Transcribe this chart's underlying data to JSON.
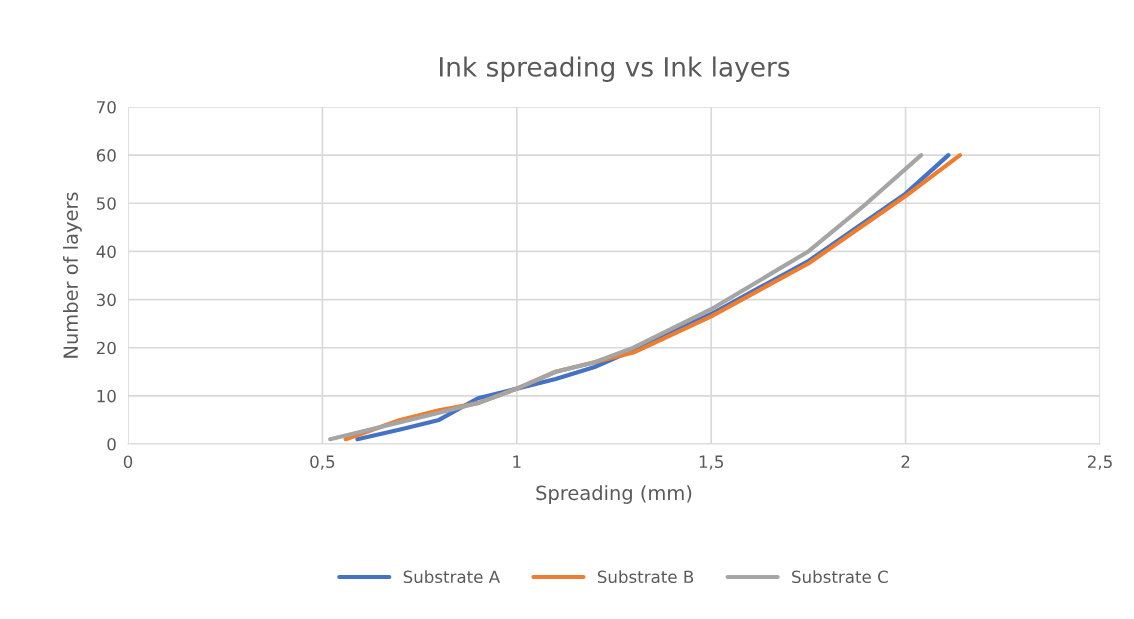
{
  "chart_data": {
    "type": "line",
    "title": "Ink spreading vs Ink layers",
    "xlabel": "Spreading (mm)",
    "ylabel": "Number of layers",
    "xlim": [
      0,
      2.5
    ],
    "ylim": [
      0,
      70
    ],
    "xticks": [
      0,
      {
        "value": 0.5,
        "label": "0,5"
      },
      1,
      {
        "value": 1.5,
        "label": "1,5"
      },
      2,
      {
        "value": 2.5,
        "label": "2,5"
      }
    ],
    "yticks": [
      0,
      10,
      20,
      30,
      40,
      50,
      60,
      70
    ],
    "grid": true,
    "legend": "bottom",
    "marker": "none",
    "line_style": "solid",
    "series": [
      {
        "name": "Substrate A",
        "color": "#4472c4",
        "x": [
          0.59,
          0.7,
          0.8,
          0.9,
          1.0,
          1.1,
          1.2,
          1.3,
          1.5,
          1.75,
          2.0,
          2.11
        ],
        "values": [
          1,
          3,
          5,
          9.5,
          11.5,
          13.5,
          16,
          19.5,
          27,
          38,
          52,
          60
        ]
      },
      {
        "name": "Substrate B",
        "color": "#ed7d31",
        "x": [
          0.56,
          0.7,
          0.8,
          0.9,
          1.0,
          1.1,
          1.2,
          1.3,
          1.5,
          1.75,
          2.0,
          2.14
        ],
        "values": [
          1,
          5,
          7,
          8.5,
          11.5,
          15,
          17,
          19,
          26.5,
          37.5,
          51.5,
          60
        ]
      },
      {
        "name": "Substrate C",
        "color": "#a5a5a5",
        "x": [
          0.52,
          0.7,
          0.8,
          0.9,
          1.0,
          1.1,
          1.2,
          1.3,
          1.5,
          1.75,
          1.9,
          2.04
        ],
        "values": [
          1,
          4.5,
          6.5,
          8.5,
          11.5,
          15,
          17,
          20,
          28,
          40,
          50,
          60
        ]
      }
    ]
  }
}
